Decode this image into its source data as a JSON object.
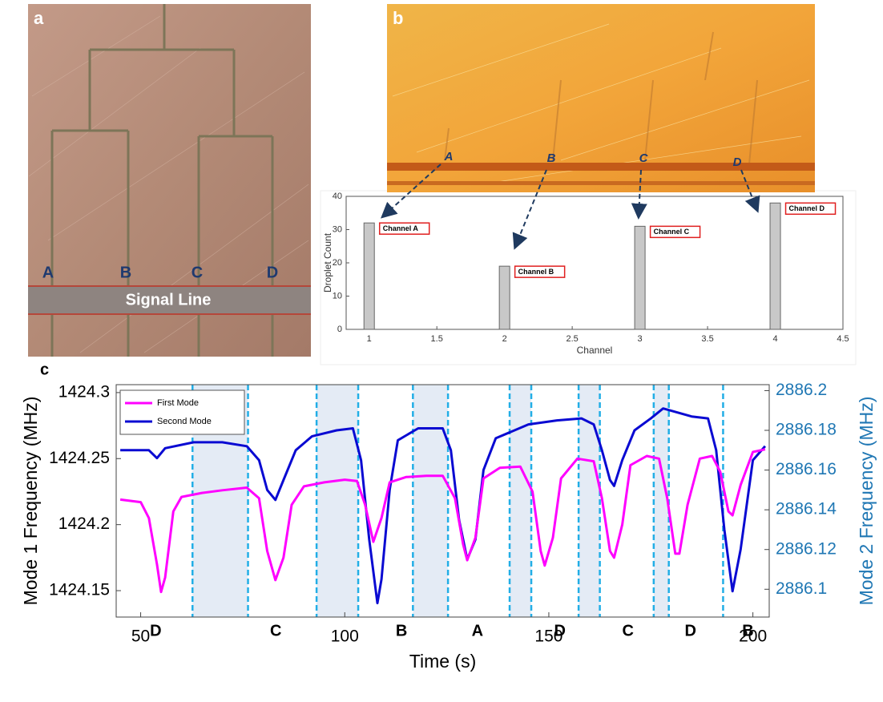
{
  "panels": {
    "a": {
      "label": "a",
      "channels": [
        "A",
        "B",
        "C",
        "D"
      ],
      "signal_line": "Signal Line"
    },
    "b": {
      "label": "b",
      "channels": [
        "A",
        "B",
        "C",
        "D"
      ]
    },
    "c": {
      "label": "c"
    }
  },
  "chart_data": [
    {
      "type": "bar",
      "x": [
        1,
        2,
        3,
        4
      ],
      "values": [
        32,
        19,
        31,
        38
      ],
      "annotations": [
        "Channel A",
        "Channel B",
        "Channel C",
        "Channel D"
      ],
      "xlabel": "Channel",
      "ylabel": "Droplet Count",
      "color": "#c8c8c8",
      "xlim": [
        0.83,
        4.5
      ],
      "xticks": [
        1,
        1.5,
        2,
        2.5,
        3,
        3.5,
        4,
        4.5
      ],
      "ylim": [
        0,
        40
      ],
      "yticks": [
        0,
        10,
        20,
        30,
        40
      ]
    },
    {
      "type": "line",
      "xlabel": "Time (s)",
      "ylabel": "Mode 1 Frequency (MHz)",
      "y2label": "Mode 2 Frequency (MHz)",
      "xlim": [
        44,
        204
      ],
      "xticks": [
        50,
        100,
        150,
        200
      ],
      "ylim": [
        1424.13,
        1424.306
      ],
      "yticks": [
        1424.15,
        1424.2,
        1424.25,
        1424.3
      ],
      "y2lim": [
        2886.086,
        2886.203
      ],
      "y2ticks": [
        2886.1,
        2886.12,
        2886.14,
        2886.16,
        2886.18,
        2886.2
      ],
      "legend": "upper left",
      "series": [
        {
          "name": "Second Mode",
          "color": "#0a0ad2",
          "axis": "y2",
          "x": [
            45,
            52,
            54,
            56,
            63,
            70,
            76,
            79,
            81,
            83,
            85,
            88,
            92,
            98,
            102,
            104,
            106,
            108,
            109,
            111,
            113,
            118,
            124,
            126,
            128,
            130,
            132,
            134,
            137,
            145,
            152,
            158,
            161,
            163,
            165,
            166,
            168,
            171,
            175,
            178,
            185,
            189,
            191,
            193,
            195,
            197,
            200,
            203
          ],
          "values": [
            2886.17,
            2886.17,
            2886.166,
            2886.171,
            2886.174,
            2886.174,
            2886.172,
            2886.165,
            2886.15,
            2886.145,
            2886.155,
            2886.17,
            2886.177,
            2886.18,
            2886.181,
            2886.165,
            2886.125,
            2886.093,
            2886.105,
            2886.15,
            2886.175,
            2886.181,
            2886.181,
            2886.17,
            2886.135,
            2886.115,
            2886.125,
            2886.16,
            2886.176,
            2886.183,
            2886.185,
            2886.186,
            2886.183,
            2886.17,
            2886.155,
            2886.152,
            2886.165,
            2886.18,
            2886.186,
            2886.191,
            2886.187,
            2886.186,
            2886.17,
            2886.13,
            2886.099,
            2886.12,
            2886.165,
            2886.172
          ]
        },
        {
          "name": "First Mode",
          "color": "#ff00ff",
          "x": [
            45,
            50,
            52,
            54,
            55,
            56,
            58,
            60,
            65,
            70,
            76,
            79,
            81,
            83,
            85,
            87,
            90,
            95,
            100,
            103,
            105,
            107,
            109,
            111,
            115,
            120,
            124,
            127,
            129,
            130,
            132,
            134,
            138,
            143,
            146,
            148,
            149,
            151,
            153,
            157,
            161,
            163,
            165,
            166,
            168,
            170,
            174,
            177,
            179,
            181,
            182,
            184,
            187,
            190,
            192,
            194,
            195,
            197,
            200,
            203
          ],
          "values": [
            1424.219,
            1424.217,
            1424.205,
            1424.17,
            1424.149,
            1424.16,
            1424.21,
            1424.221,
            1424.224,
            1424.226,
            1424.228,
            1424.22,
            1424.18,
            1424.158,
            1424.175,
            1424.215,
            1424.229,
            1424.232,
            1424.234,
            1424.233,
            1424.215,
            1424.187,
            1424.205,
            1424.232,
            1424.236,
            1424.237,
            1424.237,
            1424.22,
            1424.185,
            1424.173,
            1424.19,
            1424.235,
            1424.243,
            1424.244,
            1424.225,
            1424.18,
            1424.169,
            1424.19,
            1424.235,
            1424.25,
            1424.248,
            1424.22,
            1424.18,
            1424.175,
            1424.2,
            1424.245,
            1424.252,
            1424.25,
            1424.22,
            1424.178,
            1424.178,
            1424.215,
            1424.25,
            1424.252,
            1424.24,
            1424.21,
            1424.207,
            1424.23,
            1424.255,
            1424.257
          ]
        }
      ],
      "shaded_intervals": [
        [
          62.7,
          76.3
        ],
        [
          93.1,
          103.3
        ],
        [
          116.7,
          125.3
        ],
        [
          140.4,
          145.7
        ],
        [
          157.3,
          162.5
        ],
        [
          175.7,
          179.4
        ]
      ],
      "dashed_lines": [
        62.7,
        76.3,
        93.1,
        103.3,
        116.7,
        125.3,
        140.4,
        145.7,
        157.3,
        162.5,
        175.7,
        179.4,
        192.7
      ],
      "region_labels": [
        {
          "text": "D",
          "x": 53.7
        },
        {
          "text": "C",
          "x": 83.1
        },
        {
          "text": "B",
          "x": 113.9
        },
        {
          "text": "A",
          "x": 132.5
        },
        {
          "text": "D",
          "x": 152.7
        },
        {
          "text": "C",
          "x": 169.4
        },
        {
          "text": "D",
          "x": 184.7
        },
        {
          "text": "B",
          "x": 198.8
        }
      ]
    }
  ]
}
